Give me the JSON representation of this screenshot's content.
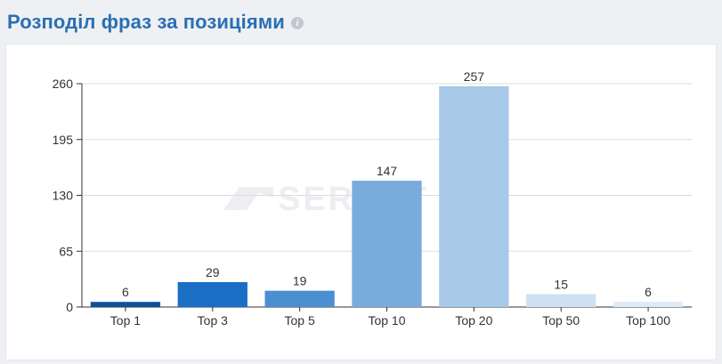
{
  "header": {
    "title": "Розподіл фраз за позиціями",
    "info_icon": "info-icon"
  },
  "watermark": {
    "text": "SERPST"
  },
  "colors": {
    "title": "#2a6fb4",
    "grid": "#dddddd",
    "axis": "#333333"
  },
  "chart_data": {
    "type": "bar",
    "title": "",
    "xlabel": "",
    "ylabel": "",
    "categories": [
      "Top 1",
      "Top 3",
      "Top 5",
      "Top 10",
      "Top 20",
      "Top 50",
      "Top 100"
    ],
    "values": [
      6,
      29,
      19,
      147,
      257,
      15,
      6
    ],
    "colors": [
      "#0f5197",
      "#1a6fc4",
      "#4b8fd3",
      "#79abdc",
      "#a7c8e7",
      "#cfe0f2",
      "#deeaf7"
    ],
    "ylim": [
      0,
      260
    ],
    "yticks": [
      0,
      65,
      130,
      195,
      260
    ],
    "grid": true,
    "legend": "none",
    "data_labels": true
  }
}
